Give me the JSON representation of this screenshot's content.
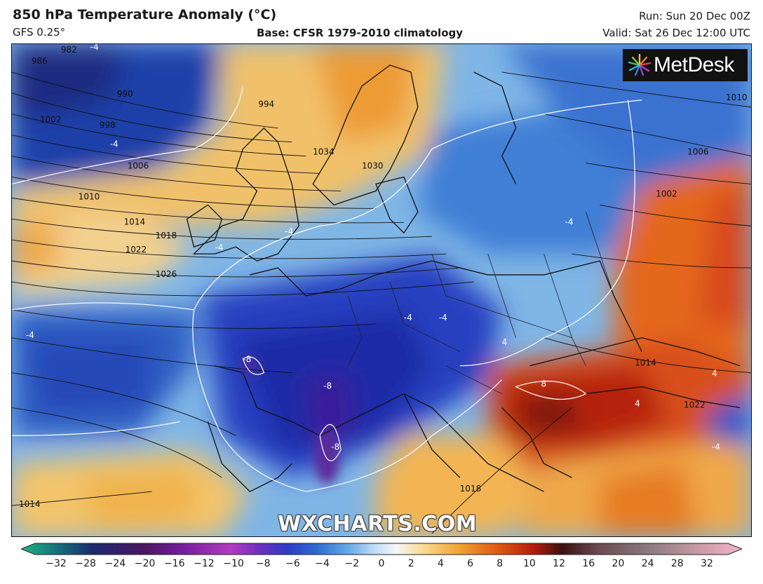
{
  "header": {
    "title": "850 hPa Temperature Anomaly (°C)",
    "model": "GFS 0.25°",
    "base": "Base: CFSR 1979-2010 climatology",
    "run": "Run: Sun 20 Dec 00Z",
    "valid": "Valid: Sat 26 Dec 12:00 UTC"
  },
  "logo": {
    "text": "MetDesk",
    "icon": "metdesk-starburst-icon"
  },
  "watermark": "WXCHARTS.COM",
  "colorbar": {
    "ticks": [
      "−32",
      "−28",
      "−24",
      "−20",
      "−16",
      "−12",
      "−10",
      "−8",
      "−6",
      "−4",
      "−2",
      "0",
      "2",
      "4",
      "6",
      "8",
      "10",
      "12",
      "16",
      "20",
      "24",
      "28",
      "32"
    ],
    "colors": {
      "neg_extreme": "#1fb58a",
      "neg_deep": "#1b2a6e",
      "neg_purple": "#7a1fa0",
      "neg_mag": "#b23cc0",
      "neg_blue": "#2a3cc8",
      "neg_mid": "#2f7ed8",
      "neg_light": "#9ecbf0",
      "neutral": "#f6f6f6",
      "pos_light": "#f7d98c",
      "pos_mid": "#f0a030",
      "pos_orange": "#e05a12",
      "pos_red": "#b81c0c",
      "pos_dark": "#3a1010",
      "pos_grey": "#8a7a80",
      "pos_pink": "#f4b4c8"
    }
  },
  "map_labels": {
    "isobars": [
      "982",
      "986",
      "990",
      "994",
      "998",
      "1002",
      "1006",
      "1010",
      "1014",
      "1018",
      "1022",
      "1026",
      "1030",
      "1034",
      "1010",
      "1006",
      "1002",
      "1014",
      "1018",
      "1014",
      "1022",
      "1014"
    ],
    "anomaly_labels": [
      "-4",
      "-4",
      "-4",
      "-4",
      "-4",
      "-4",
      "-4",
      "-4",
      "-8",
      "-8",
      "-8",
      "-4",
      "8",
      "4",
      "4",
      "4"
    ]
  }
}
